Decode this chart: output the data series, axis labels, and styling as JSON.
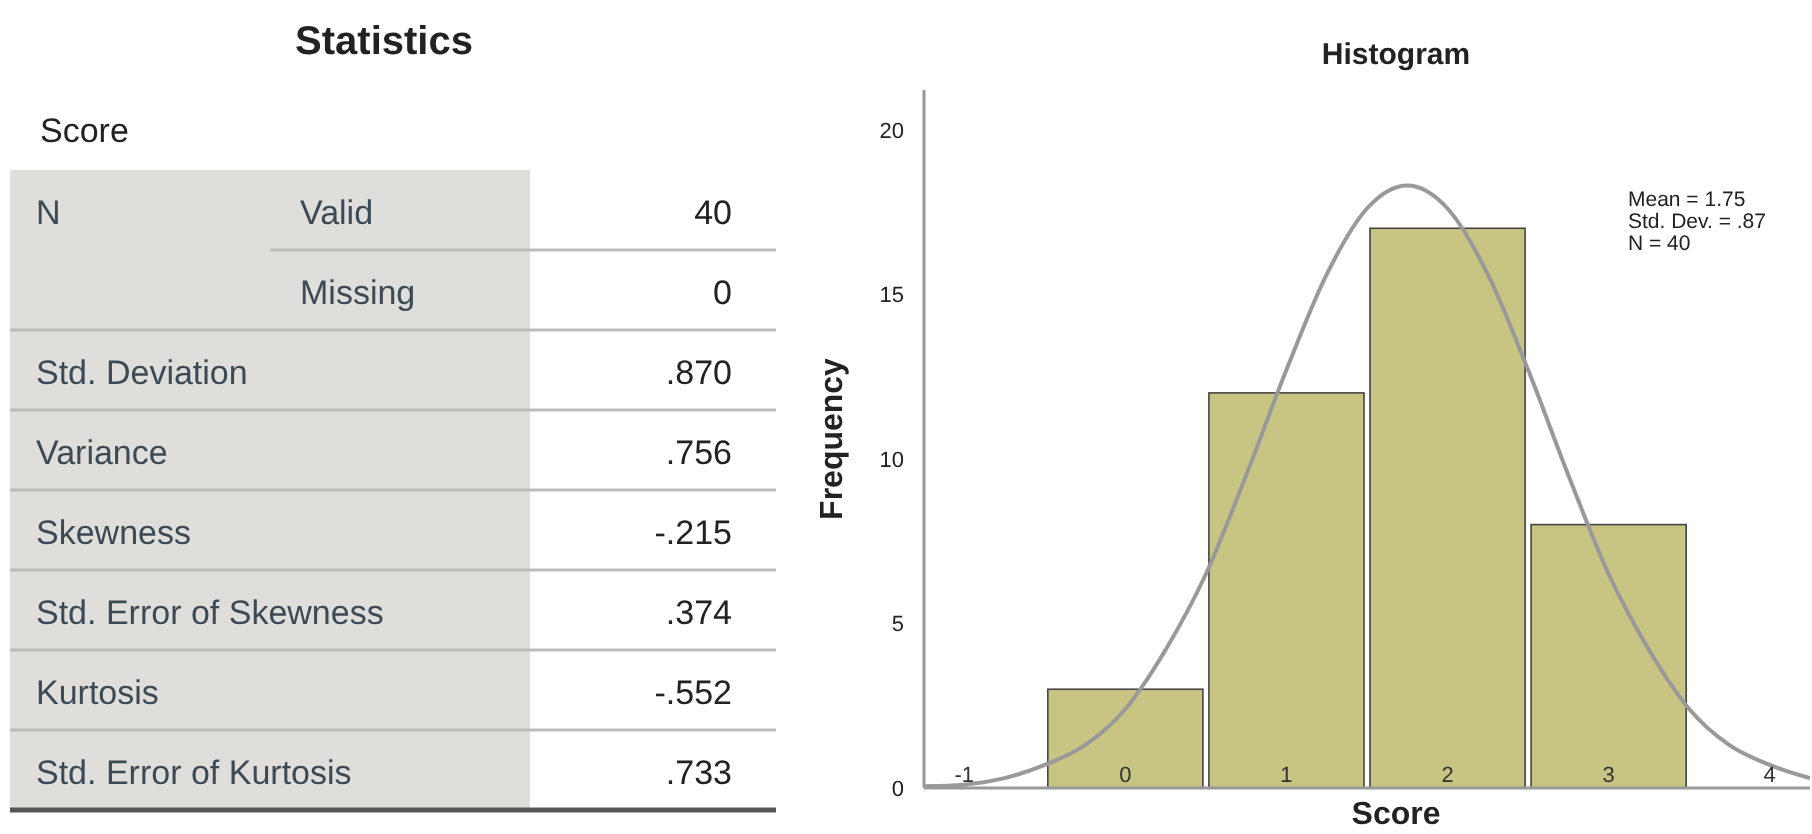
{
  "chart_data": [
    {
      "type": "other",
      "title": "Statistics",
      "subtitle": "Score",
      "y_categories": [
        "N",
        null,
        "Std. Deviation",
        "Variance",
        "Skewness",
        "Std. Error of Skewness",
        "Kurtosis",
        "Std. Error of Kurtosis"
      ],
      "y2_categories": [
        "Valid",
        "Missing",
        null,
        null,
        null,
        null,
        null,
        null
      ],
      "annotations": [
        "40",
        "0",
        ".870",
        ".756",
        "-.215",
        ".374",
        "-.552",
        ".733"
      ]
    },
    {
      "type": "histogram",
      "title": "Histogram",
      "xlabel": "Score",
      "ylabel": "Frequency",
      "bins": [
        -0.5,
        0.5,
        1.5,
        2.5,
        3.5
      ],
      "values": [
        3,
        12,
        17,
        8
      ],
      "color": "#c8c484",
      "xlim": [
        -1.25,
        4.25
      ],
      "xticks": [
        -1,
        0,
        1,
        2,
        3,
        4
      ],
      "ylim": [
        0,
        21.2
      ],
      "yticks": [
        0,
        5,
        10,
        15,
        20
      ],
      "series": [
        {
          "type": "line",
          "color": "#999999",
          "x": [
            -1.25,
            -1,
            -0.75,
            -0.5,
            -0.25,
            0,
            0.25,
            0.5,
            0.75,
            1,
            1.25,
            1.5,
            1.75,
            2,
            2.25,
            2.5,
            2.75,
            3,
            3.25,
            3.5,
            3.75,
            4,
            4.25
          ],
          "values": [
            0.05,
            0.1,
            0.3,
            0.7,
            1.3,
            2.4,
            4.2,
            6.5,
            9.5,
            12.7,
            15.6,
            17.6,
            18.3,
            17.6,
            15.6,
            12.7,
            9.5,
            6.5,
            4.2,
            2.4,
            1.3,
            0.7,
            0.3
          ]
        }
      ],
      "annotations": [
        "Mean = 1.75",
        "Std. Dev. = .87",
        "N = 40"
      ],
      "grid": false
    }
  ]
}
